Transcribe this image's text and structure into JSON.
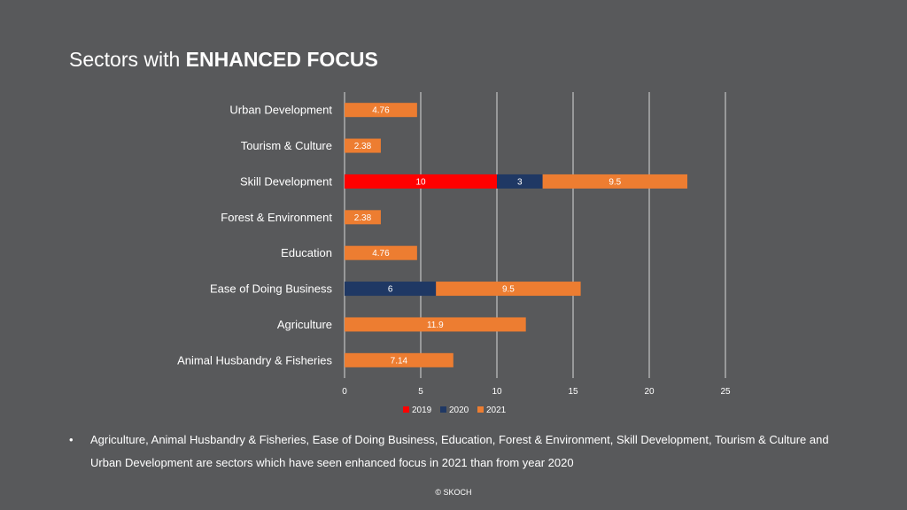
{
  "slide": {
    "title_prefix": "Sectors with ",
    "title_emphasis": "ENHANCED FOCUS",
    "bullet_symbol": "•",
    "bullet_text": "Agriculture, Animal Husbandry & Fisheries, Ease of Doing Business, Education, Forest & Environment, Skill Development, Tourism & Culture and Urban Development are sectors which have seen enhanced focus in 2021 than from year 2020",
    "copyright": "© SKOCH"
  },
  "colors": {
    "background": "#58595b",
    "gridline": "#d9d9d9",
    "text": "#ffffff"
  },
  "chart_data": {
    "type": "bar",
    "orientation": "horizontal",
    "stacked": true,
    "categories": [
      "Urban Development",
      "Tourism & Culture",
      "Skill Development",
      "Forest & Environment",
      "Education",
      "Ease of Doing Business",
      "Agriculture",
      "Animal Husbandry & Fisheries"
    ],
    "series": [
      {
        "name": "2019",
        "color": "#ff0000",
        "values": [
          null,
          null,
          10,
          null,
          null,
          null,
          null,
          null
        ],
        "labels": [
          "",
          "",
          "10",
          "",
          "",
          "",
          "",
          ""
        ]
      },
      {
        "name": "2020",
        "color": "#1f3864",
        "values": [
          null,
          null,
          3,
          null,
          null,
          6,
          null,
          null
        ],
        "labels": [
          "",
          "",
          "3",
          "",
          "",
          "6",
          "",
          ""
        ]
      },
      {
        "name": "2021",
        "color": "#ed7d31",
        "values": [
          4.76,
          2.38,
          9.5,
          2.38,
          4.76,
          9.5,
          11.9,
          7.14
        ],
        "labels": [
          "4.76",
          "2.38",
          "9.5",
          "2.38",
          "4.76",
          "9.5",
          "11.9",
          "7.14"
        ]
      }
    ],
    "xlim": [
      0,
      25
    ],
    "xticks": [
      0,
      5,
      10,
      15,
      20,
      25
    ],
    "grid": true,
    "legend": "bottom"
  }
}
